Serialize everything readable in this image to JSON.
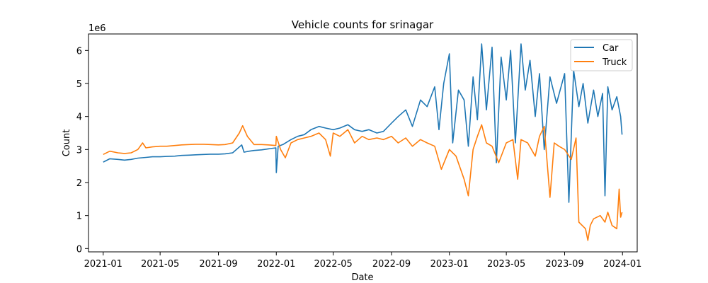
{
  "chart_data": {
    "type": "line",
    "title": "Vehicle counts for srinagar",
    "xlabel": "Date",
    "ylabel": "Count",
    "y_offset_label": "1e6",
    "x_range": [
      "2020-12-01",
      "2024-02-01"
    ],
    "ylim": [
      -0.1,
      6.5
    ],
    "y_scale_note": "values in millions (×1e6)",
    "x_ticks": [
      "2021-01",
      "2021-05",
      "2021-09",
      "2022-01",
      "2022-05",
      "2022-09",
      "2023-01",
      "2023-05",
      "2023-09",
      "2024-01"
    ],
    "y_ticks": [
      0,
      1,
      2,
      3,
      4,
      5,
      6
    ],
    "legend": {
      "position": "top-right"
    },
    "grid": false,
    "series": [
      {
        "name": "Car",
        "color": "#1f77b4",
        "points": [
          [
            "2021-01-01",
            2.62
          ],
          [
            "2021-01-15",
            2.72
          ],
          [
            "2021-02-01",
            2.7
          ],
          [
            "2021-02-15",
            2.68
          ],
          [
            "2021-03-01",
            2.7
          ],
          [
            "2021-03-15",
            2.74
          ],
          [
            "2021-04-01",
            2.76
          ],
          [
            "2021-04-15",
            2.78
          ],
          [
            "2021-05-01",
            2.78
          ],
          [
            "2021-05-15",
            2.79
          ],
          [
            "2021-06-01",
            2.8
          ],
          [
            "2021-06-15",
            2.82
          ],
          [
            "2021-07-01",
            2.83
          ],
          [
            "2021-07-15",
            2.84
          ],
          [
            "2021-08-01",
            2.85
          ],
          [
            "2021-08-15",
            2.86
          ],
          [
            "2021-09-01",
            2.86
          ],
          [
            "2021-09-15",
            2.87
          ],
          [
            "2021-10-01",
            2.9
          ],
          [
            "2021-10-20",
            3.14
          ],
          [
            "2021-10-25",
            2.92
          ],
          [
            "2021-11-01",
            2.94
          ],
          [
            "2021-11-15",
            2.97
          ],
          [
            "2021-12-01",
            2.99
          ],
          [
            "2021-12-15",
            3.02
          ],
          [
            "2021-12-31",
            3.05
          ],
          [
            "2022-01-01",
            2.3
          ],
          [
            "2022-01-05",
            3.1
          ],
          [
            "2022-01-15",
            3.15
          ],
          [
            "2022-02-01",
            3.3
          ],
          [
            "2022-02-15",
            3.4
          ],
          [
            "2022-03-01",
            3.45
          ],
          [
            "2022-03-15",
            3.6
          ],
          [
            "2022-04-01",
            3.7
          ],
          [
            "2022-04-15",
            3.65
          ],
          [
            "2022-05-01",
            3.6
          ],
          [
            "2022-05-15",
            3.65
          ],
          [
            "2022-06-01",
            3.75
          ],
          [
            "2022-06-15",
            3.6
          ],
          [
            "2022-07-01",
            3.55
          ],
          [
            "2022-07-15",
            3.6
          ],
          [
            "2022-08-01",
            3.5
          ],
          [
            "2022-08-15",
            3.55
          ],
          [
            "2022-09-01",
            3.8
          ],
          [
            "2022-09-15",
            4.0
          ],
          [
            "2022-10-01",
            4.2
          ],
          [
            "2022-10-15",
            3.7
          ],
          [
            "2022-11-01",
            4.5
          ],
          [
            "2022-11-15",
            4.3
          ],
          [
            "2022-12-01",
            4.9
          ],
          [
            "2022-12-10",
            3.6
          ],
          [
            "2022-12-20",
            5.0
          ],
          [
            "2023-01-01",
            5.9
          ],
          [
            "2023-01-08",
            3.2
          ],
          [
            "2023-01-20",
            4.8
          ],
          [
            "2023-02-01",
            4.5
          ],
          [
            "2023-02-10",
            3.1
          ],
          [
            "2023-02-20",
            5.2
          ],
          [
            "2023-03-01",
            3.9
          ],
          [
            "2023-03-10",
            6.2
          ],
          [
            "2023-03-20",
            4.2
          ],
          [
            "2023-04-01",
            6.1
          ],
          [
            "2023-04-10",
            2.6
          ],
          [
            "2023-04-20",
            5.8
          ],
          [
            "2023-05-01",
            4.5
          ],
          [
            "2023-05-10",
            6.0
          ],
          [
            "2023-05-20",
            3.2
          ],
          [
            "2023-06-01",
            6.2
          ],
          [
            "2023-06-10",
            4.8
          ],
          [
            "2023-06-20",
            5.7
          ],
          [
            "2023-07-01",
            4.0
          ],
          [
            "2023-07-10",
            5.3
          ],
          [
            "2023-07-20",
            3.0
          ],
          [
            "2023-08-01",
            5.2
          ],
          [
            "2023-08-15",
            4.4
          ],
          [
            "2023-09-01",
            5.3
          ],
          [
            "2023-09-10",
            1.4
          ],
          [
            "2023-09-20",
            5.4
          ],
          [
            "2023-10-01",
            4.3
          ],
          [
            "2023-10-10",
            5.0
          ],
          [
            "2023-10-20",
            3.8
          ],
          [
            "2023-11-01",
            4.8
          ],
          [
            "2023-11-10",
            4.0
          ],
          [
            "2023-11-20",
            4.7
          ],
          [
            "2023-11-25",
            1.6
          ],
          [
            "2023-12-01",
            4.9
          ],
          [
            "2023-12-10",
            4.2
          ],
          [
            "2023-12-20",
            4.6
          ],
          [
            "2023-12-28",
            4.0
          ],
          [
            "2023-12-31",
            3.45
          ]
        ]
      },
      {
        "name": "Truck",
        "color": "#ff7f0e",
        "points": [
          [
            "2021-01-01",
            2.85
          ],
          [
            "2021-01-15",
            2.95
          ],
          [
            "2021-02-01",
            2.9
          ],
          [
            "2021-02-15",
            2.88
          ],
          [
            "2021-03-01",
            2.9
          ],
          [
            "2021-03-15",
            3.0
          ],
          [
            "2021-03-25",
            3.2
          ],
          [
            "2021-04-01",
            3.05
          ],
          [
            "2021-04-15",
            3.08
          ],
          [
            "2021-05-01",
            3.1
          ],
          [
            "2021-05-15",
            3.1
          ],
          [
            "2021-06-01",
            3.12
          ],
          [
            "2021-06-15",
            3.14
          ],
          [
            "2021-07-01",
            3.15
          ],
          [
            "2021-07-15",
            3.16
          ],
          [
            "2021-08-01",
            3.16
          ],
          [
            "2021-08-15",
            3.15
          ],
          [
            "2021-09-01",
            3.14
          ],
          [
            "2021-09-15",
            3.15
          ],
          [
            "2021-10-01",
            3.2
          ],
          [
            "2021-10-15",
            3.5
          ],
          [
            "2021-10-22",
            3.72
          ],
          [
            "2021-11-01",
            3.4
          ],
          [
            "2021-11-15",
            3.15
          ],
          [
            "2021-12-01",
            3.15
          ],
          [
            "2021-12-15",
            3.14
          ],
          [
            "2021-12-31",
            3.12
          ],
          [
            "2022-01-01",
            3.4
          ],
          [
            "2022-01-10",
            3.0
          ],
          [
            "2022-01-20",
            2.75
          ],
          [
            "2022-02-01",
            3.2
          ],
          [
            "2022-02-15",
            3.3
          ],
          [
            "2022-03-01",
            3.35
          ],
          [
            "2022-03-15",
            3.4
          ],
          [
            "2022-04-01",
            3.5
          ],
          [
            "2022-04-15",
            3.3
          ],
          [
            "2022-04-25",
            2.8
          ],
          [
            "2022-05-01",
            3.5
          ],
          [
            "2022-05-15",
            3.4
          ],
          [
            "2022-06-01",
            3.6
          ],
          [
            "2022-06-15",
            3.2
          ],
          [
            "2022-07-01",
            3.4
          ],
          [
            "2022-07-15",
            3.3
          ],
          [
            "2022-08-01",
            3.35
          ],
          [
            "2022-08-15",
            3.3
          ],
          [
            "2022-09-01",
            3.4
          ],
          [
            "2022-09-15",
            3.2
          ],
          [
            "2022-10-01",
            3.35
          ],
          [
            "2022-10-15",
            3.1
          ],
          [
            "2022-11-01",
            3.3
          ],
          [
            "2022-11-15",
            3.2
          ],
          [
            "2022-12-01",
            3.1
          ],
          [
            "2022-12-15",
            2.4
          ],
          [
            "2023-01-01",
            3.0
          ],
          [
            "2023-01-15",
            2.8
          ],
          [
            "2023-02-01",
            2.1
          ],
          [
            "2023-02-10",
            1.6
          ],
          [
            "2023-02-20",
            3.0
          ],
          [
            "2023-03-01",
            3.4
          ],
          [
            "2023-03-10",
            3.75
          ],
          [
            "2023-03-20",
            3.2
          ],
          [
            "2023-04-01",
            3.1
          ],
          [
            "2023-04-15",
            2.6
          ],
          [
            "2023-05-01",
            3.2
          ],
          [
            "2023-05-15",
            3.3
          ],
          [
            "2023-05-25",
            2.1
          ],
          [
            "2023-06-01",
            3.3
          ],
          [
            "2023-06-15",
            3.2
          ],
          [
            "2023-07-01",
            2.8
          ],
          [
            "2023-07-10",
            3.4
          ],
          [
            "2023-07-20",
            3.7
          ],
          [
            "2023-08-01",
            1.55
          ],
          [
            "2023-08-10",
            3.2
          ],
          [
            "2023-08-20",
            3.1
          ],
          [
            "2023-09-01",
            3.0
          ],
          [
            "2023-09-15",
            2.7
          ],
          [
            "2023-09-25",
            3.35
          ],
          [
            "2023-10-01",
            0.8
          ],
          [
            "2023-10-15",
            0.6
          ],
          [
            "2023-10-20",
            0.25
          ],
          [
            "2023-10-25",
            0.7
          ],
          [
            "2023-11-01",
            0.9
          ],
          [
            "2023-11-15",
            1.0
          ],
          [
            "2023-11-25",
            0.8
          ],
          [
            "2023-12-01",
            1.1
          ],
          [
            "2023-12-10",
            0.7
          ],
          [
            "2023-12-20",
            0.6
          ],
          [
            "2023-12-25",
            1.8
          ],
          [
            "2023-12-28",
            0.95
          ],
          [
            "2023-12-31",
            1.1
          ]
        ]
      }
    ]
  }
}
